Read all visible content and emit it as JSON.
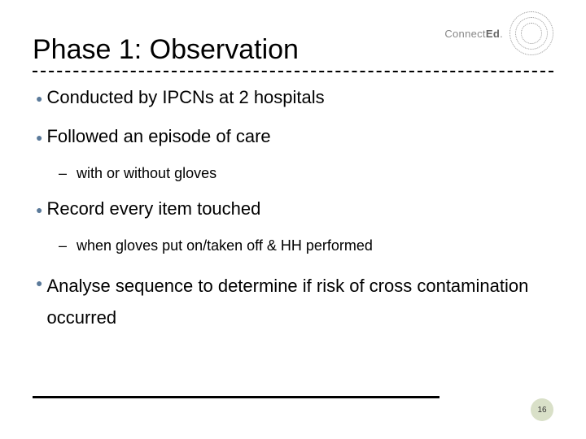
{
  "logo": {
    "brand_part1": "Connect",
    "brand_part2": "Ed",
    "brand_suffix": "."
  },
  "title": "Phase 1: Observation",
  "bullets": {
    "b1": "Conducted by IPCNs at 2 hospitals",
    "b2": "Followed an episode of care",
    "b2a": "with or without gloves",
    "b3": "Record every item touched",
    "b3a": "when gloves put on/taken off & HH performed",
    "b4": "Analyse sequence to determine if risk of cross contamination occurred"
  },
  "page_number": "16",
  "colors": {
    "bullet_dot": "#5b7a9a",
    "badge_bg": "#d9e0c8",
    "logo_ring": "#999"
  }
}
